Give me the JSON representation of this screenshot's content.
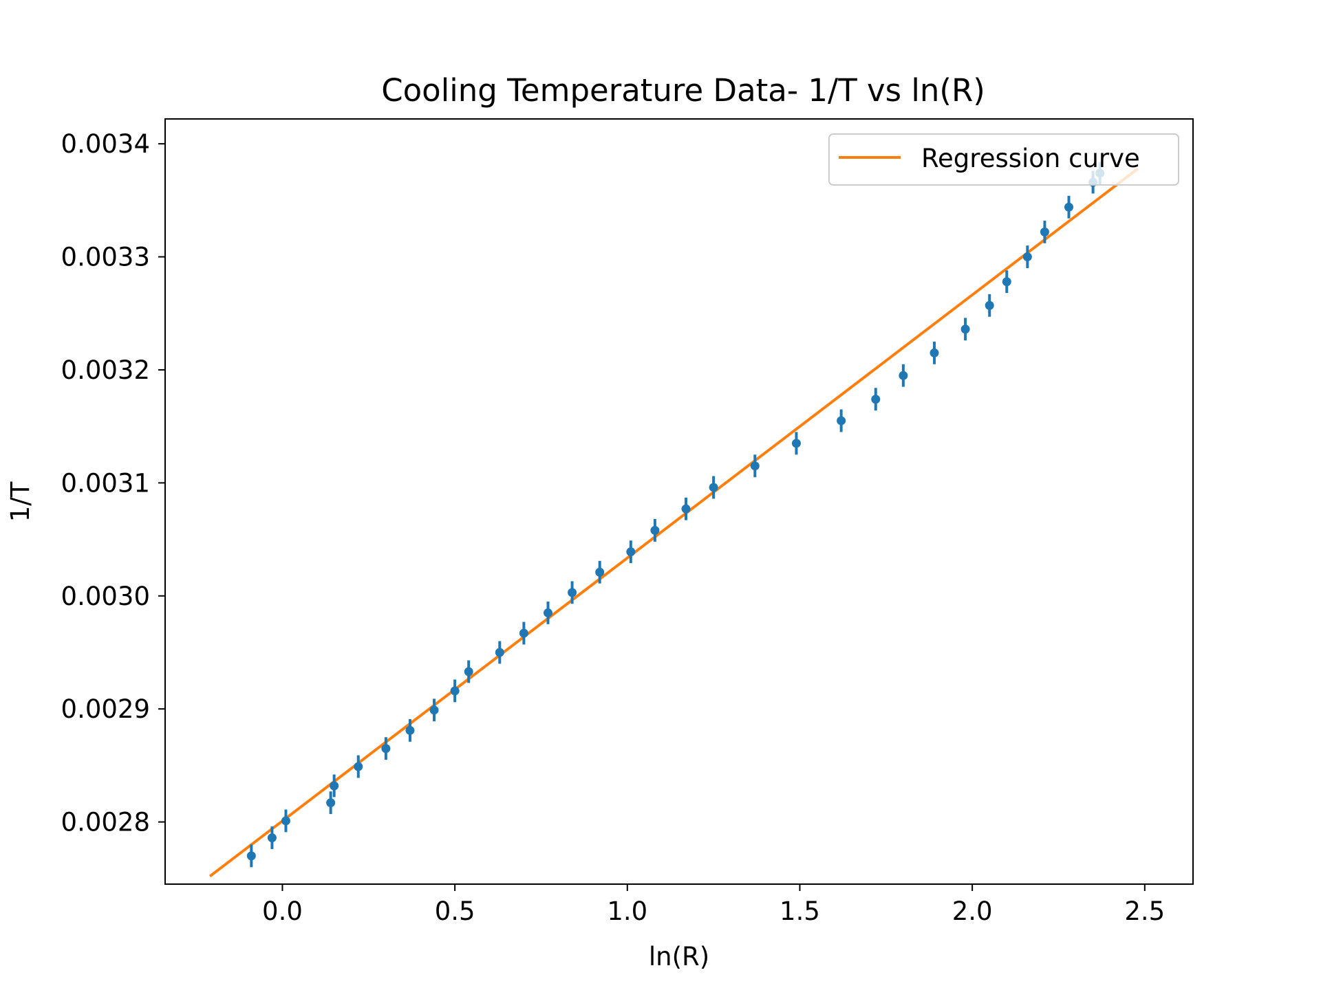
{
  "chart_data": {
    "type": "scatter",
    "title": "Cooling Temperature Data-  1/T vs ln(R)",
    "xlabel": "ln(R)",
    "ylabel": "1/T",
    "xlim": [
      -0.34,
      2.64
    ],
    "ylim": [
      0.002745,
      0.003422
    ],
    "xticks": [
      0.0,
      0.5,
      1.0,
      1.5,
      2.0,
      2.5
    ],
    "xtick_labels": [
      "0.0",
      "0.5",
      "1.0",
      "1.5",
      "2.0",
      "2.5"
    ],
    "yticks": [
      0.0028,
      0.0029,
      0.003,
      0.0031,
      0.0032,
      0.0033,
      0.0034
    ],
    "ytick_labels": [
      "0.0028",
      "0.0029",
      "0.0030",
      "0.0031",
      "0.0032",
      "0.0033",
      "0.0034"
    ],
    "grid": false,
    "legend": {
      "location": "upper right",
      "entries": [
        "Regression curve"
      ]
    },
    "series": [
      {
        "type": "errorbar",
        "color": "#1f77b4",
        "x": [
          -0.09,
          -0.03,
          0.01,
          0.14,
          0.15,
          0.22,
          0.3,
          0.37,
          0.44,
          0.5,
          0.54,
          0.63,
          0.7,
          0.77,
          0.84,
          0.92,
          1.01,
          1.08,
          1.17,
          1.25,
          1.37,
          1.49,
          1.62,
          1.72,
          1.8,
          1.89,
          1.98,
          2.05,
          2.1,
          2.16,
          2.21,
          2.28,
          2.35,
          2.37
        ],
        "y": [
          0.00277,
          0.002786,
          0.002801,
          0.002817,
          0.002832,
          0.002849,
          0.002865,
          0.002881,
          0.002899,
          0.002916,
          0.002933,
          0.00295,
          0.002967,
          0.002985,
          0.003003,
          0.003021,
          0.003039,
          0.003058,
          0.003077,
          0.003096,
          0.003115,
          0.003135,
          0.003155,
          0.003174,
          0.003195,
          0.003215,
          0.003236,
          0.003257,
          0.003278,
          0.0033,
          0.003322,
          0.003344,
          0.003366,
          0.003374
        ],
        "yerr": 1e-05
      },
      {
        "type": "line",
        "name": "Regression curve",
        "color": "#ff7f0e",
        "x": [
          -0.21,
          2.48
        ],
        "y": [
          0.002752,
          0.003378
        ]
      }
    ]
  },
  "colors": {
    "points": "#1f77b4",
    "regression": "#ff7f0e",
    "axes": "#000000"
  }
}
